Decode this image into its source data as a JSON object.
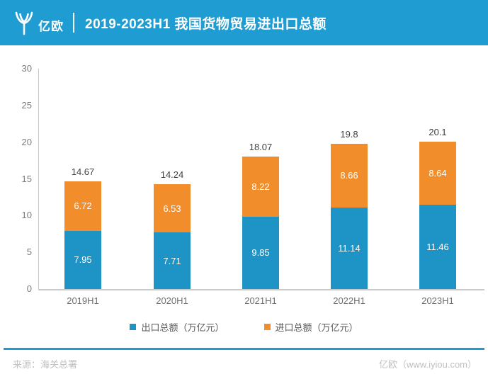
{
  "header": {
    "brand": "亿欧",
    "title": "2019-2023H1 我国货物贸易进出口总额"
  },
  "chart_data": {
    "type": "bar",
    "stacked": true,
    "title": "2019-2023H1 我国货物贸易进出口总额",
    "categories": [
      "2019H1",
      "2020H1",
      "2021H1",
      "2022H1",
      "2023H1"
    ],
    "series": [
      {
        "name": "出口总额（万亿元）",
        "color": "#1e93c5",
        "values": [
          7.95,
          7.71,
          9.85,
          11.14,
          11.46
        ]
      },
      {
        "name": "进口总额（万亿元）",
        "color": "#f18d2b",
        "values": [
          6.72,
          6.53,
          8.22,
          8.66,
          8.64
        ]
      }
    ],
    "totals": [
      "14.67",
      "14.24",
      "18.07",
      "19.8",
      "20.1"
    ],
    "yticks": [
      0,
      5,
      10,
      15,
      20,
      25,
      30
    ],
    "ylim": [
      0,
      30
    ],
    "xlabel": "",
    "ylabel": "",
    "grid": false,
    "legend_position": "bottom"
  },
  "footer": {
    "source": "来源：海关总署",
    "brand": "亿欧（www.iyiou.com）"
  },
  "colors": {
    "header_bg": "#1f9dd3",
    "export_bar": "#1e93c5",
    "import_bar": "#f18d2b",
    "rule": "#1f9dd3",
    "axis_line": "#c6c6c6"
  }
}
